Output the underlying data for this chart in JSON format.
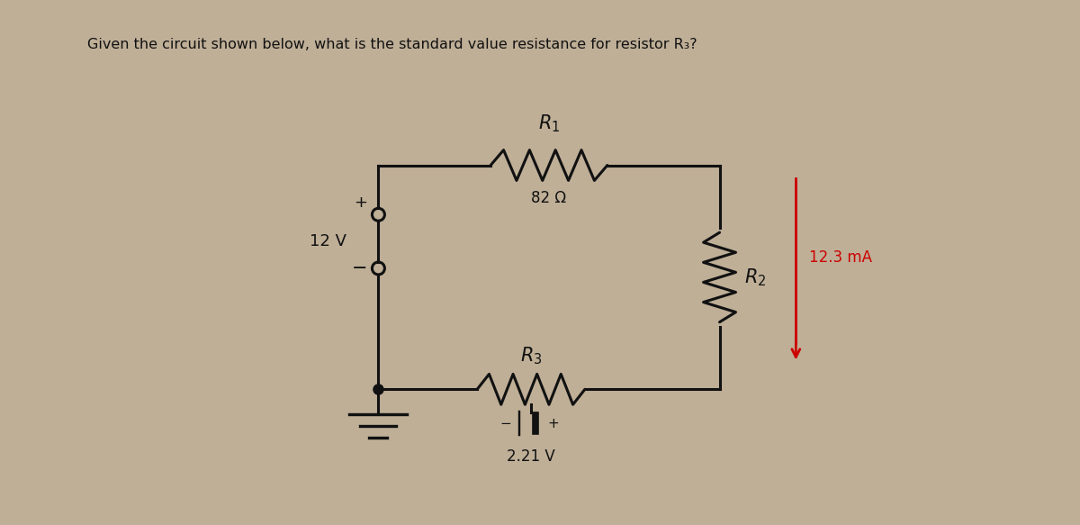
{
  "title": "Given the circuit shown below, what is the standard value resistance for resistor R₃?",
  "bg_color": "#bfaf97",
  "circuit_color": "#111111",
  "r1_label": "$R_1$",
  "r1_value": "82 Ω",
  "r2_label": "$R_2$",
  "r3_label": "$R_3$",
  "voltage_source_label": "12 V",
  "voltage_source2_label": "2.21 V",
  "current_label": "12.3 mA",
  "current_color": "#cc0000",
  "lw": 2.2,
  "TLx": 4.2,
  "TLy": 4.0,
  "TRx": 8.0,
  "TRy": 4.0,
  "BLx": 4.2,
  "BLy": 1.5,
  "BRx": 8.0,
  "BRy": 1.5
}
